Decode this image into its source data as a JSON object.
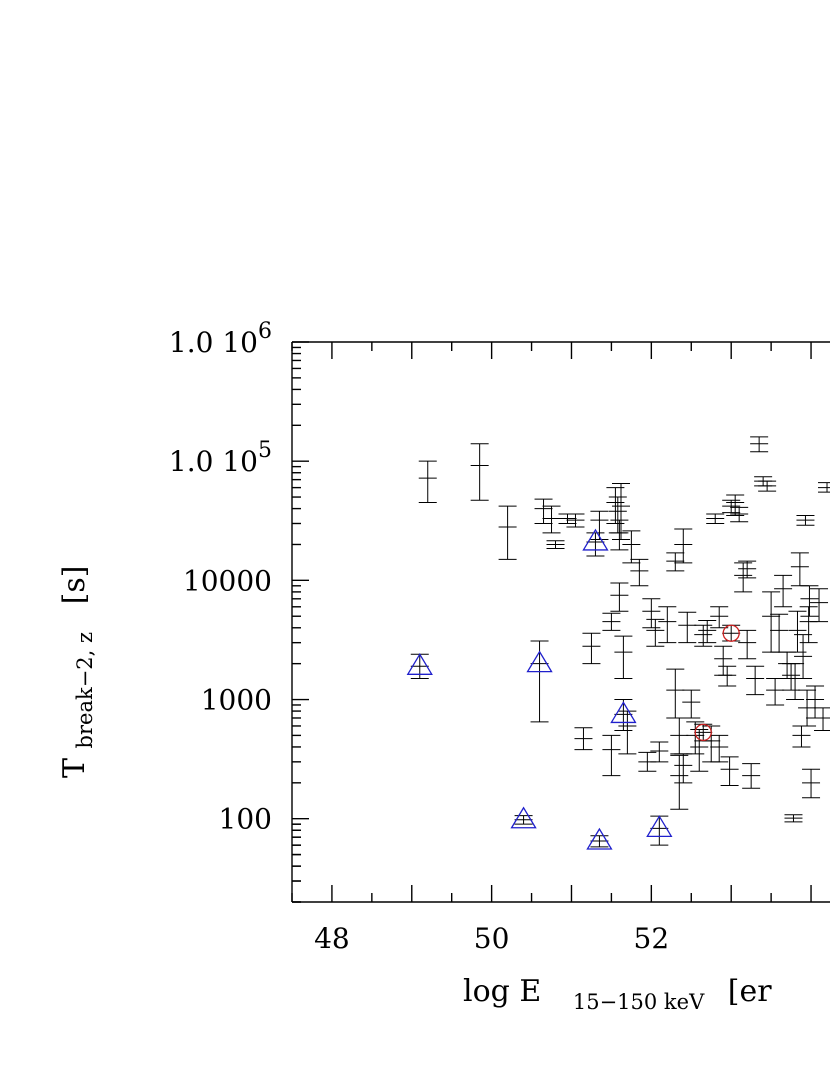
{
  "chart_data": {
    "type": "scatter",
    "xlabel": {
      "main": "log E",
      "sub": "15−150 keV",
      "unit": "[er"
    },
    "ylabel": {
      "main": "T",
      "sub": "break−2, z",
      "unit": "[s]"
    },
    "x_scale": "linear",
    "y_scale": "log",
    "xlim": [
      47.5,
      54.3
    ],
    "ylim": [
      20,
      1000000
    ],
    "x_ticks": [
      {
        "value": 48,
        "label": "48"
      },
      {
        "value": 50,
        "label": "50"
      },
      {
        "value": 52,
        "label": "52"
      }
    ],
    "y_ticks": [
      {
        "value": 1000000,
        "prefix": "1.0",
        "label": "10",
        "exp": "6"
      },
      {
        "value": 100000,
        "prefix": "1.0",
        "label": "10",
        "exp": "5"
      },
      {
        "value": 10000,
        "prefix": "",
        "label": "10000",
        "exp": ""
      },
      {
        "value": 1000,
        "prefix": "",
        "label": "1000",
        "exp": ""
      },
      {
        "value": 100,
        "prefix": "",
        "label": "100",
        "exp": ""
      }
    ],
    "grid": false,
    "series": [
      {
        "marker": "cross",
        "color": "#000000",
        "points": [
          [
            49.2,
            72000,
            45000,
            100000
          ],
          [
            49.85,
            92000,
            47000,
            140000
          ],
          [
            50.2,
            28000,
            15000,
            42000
          ],
          [
            50.65,
            40000,
            30000,
            48000
          ],
          [
            50.75,
            33000,
            25000,
            42000
          ],
          [
            50.8,
            20000,
            18500,
            21500
          ],
          [
            50.95,
            33000,
            30000,
            36000
          ],
          [
            51.05,
            32000,
            28000,
            36000
          ],
          [
            51.15,
            470,
            380,
            580
          ],
          [
            51.25,
            2800,
            2000,
            3600
          ],
          [
            51.35,
            32000,
            22000,
            38000
          ],
          [
            51.5,
            4500,
            3800,
            5300
          ],
          [
            51.55,
            45000,
            30000,
            60000
          ],
          [
            51.58,
            38000,
            25000,
            50000
          ],
          [
            51.6,
            25000,
            18000,
            32000
          ],
          [
            51.62,
            42000,
            22000,
            65000
          ],
          [
            51.65,
            2500,
            1500,
            3400
          ],
          [
            51.6,
            7500,
            5500,
            9500
          ],
          [
            51.5,
            380,
            230,
            500
          ],
          [
            51.7,
            600,
            350,
            800
          ],
          [
            51.75,
            20000,
            14000,
            26000
          ],
          [
            51.85,
            12000,
            9000,
            15000
          ],
          [
            51.95,
            300,
            250,
            360
          ],
          [
            52.0,
            5500,
            4000,
            7000
          ],
          [
            52.05,
            3800,
            2800,
            4700
          ],
          [
            52.1,
            370,
            300,
            440
          ],
          [
            52.2,
            4500,
            3000,
            6000
          ],
          [
            52.3,
            14500,
            12000,
            17000
          ],
          [
            52.3,
            1200,
            700,
            1800
          ],
          [
            52.35,
            230,
            120,
            340
          ],
          [
            52.4,
            20000,
            14000,
            27000
          ],
          [
            52.45,
            4200,
            3000,
            5400
          ],
          [
            52.5,
            950,
            700,
            1200
          ],
          [
            52.55,
            500,
            350,
            650
          ],
          [
            52.6,
            400,
            250,
            560
          ],
          [
            52.65,
            3500,
            2800,
            4200
          ],
          [
            52.7,
            3800,
            3000,
            4600
          ],
          [
            52.75,
            450,
            300,
            600
          ],
          [
            52.8,
            33000,
            30000,
            36000
          ],
          [
            52.85,
            5000,
            4000,
            6000
          ],
          [
            52.9,
            2200,
            1600,
            2800
          ],
          [
            52.95,
            1600,
            1300,
            1900
          ],
          [
            52.98,
            260,
            190,
            330
          ],
          [
            53.0,
            42000,
            37000,
            47000
          ],
          [
            53.05,
            45000,
            35000,
            52000
          ],
          [
            53.1,
            36000,
            31000,
            41000
          ],
          [
            53.15,
            11000,
            8000,
            14000
          ],
          [
            53.2,
            12500,
            10500,
            14500
          ],
          [
            53.25,
            230,
            180,
            290
          ],
          [
            53.3,
            1500,
            1100,
            1900
          ],
          [
            53.35,
            140000,
            120000,
            160000
          ],
          [
            53.4,
            68000,
            62000,
            74000
          ],
          [
            53.45,
            62000,
            56000,
            68000
          ],
          [
            53.5,
            5000,
            2500,
            8000
          ],
          [
            53.55,
            1200,
            900,
            1500
          ],
          [
            53.6,
            3800,
            2500,
            5200
          ],
          [
            53.65,
            8500,
            6000,
            11000
          ],
          [
            53.7,
            2000,
            1500,
            2500
          ],
          [
            53.75,
            1600,
            1200,
            2000
          ],
          [
            53.78,
            101,
            94,
            108
          ],
          [
            53.8,
            1500,
            1000,
            2000
          ],
          [
            53.83,
            3800,
            2500,
            5500
          ],
          [
            53.86,
            13000,
            9000,
            17000
          ],
          [
            53.88,
            500,
            400,
            600
          ],
          [
            53.9,
            2300,
            1500,
            3500
          ],
          [
            53.93,
            32000,
            29000,
            35000
          ],
          [
            53.95,
            850,
            600,
            1200
          ],
          [
            53.97,
            4500,
            3000,
            6000
          ],
          [
            53.98,
            7000,
            5000,
            9000
          ],
          [
            54.0,
            200,
            150,
            260
          ],
          [
            54.05,
            1000,
            700,
            1300
          ],
          [
            54.1,
            6500,
            4500,
            8500
          ],
          [
            54.15,
            700,
            550,
            850
          ],
          [
            54.2,
            60000,
            55000,
            66000
          ],
          [
            52.35,
            500,
            350,
            700
          ],
          [
            52.4,
            280,
            200,
            350
          ],
          [
            52.85,
            400,
            300,
            500
          ],
          [
            53.2,
            3000,
            2200,
            3800
          ]
        ]
      },
      {
        "marker": "triangle",
        "color": "#2020cc",
        "points": [
          [
            49.1,
            1900,
            1500,
            2400
          ],
          [
            50.4,
            98,
            90,
            106
          ],
          [
            50.6,
            2000,
            650,
            3100
          ],
          [
            51.3,
            21000,
            16000,
            25000
          ],
          [
            51.35,
            65,
            58,
            72
          ],
          [
            51.65,
            750,
            550,
            1000
          ],
          [
            52.1,
            83,
            60,
            105
          ]
        ]
      },
      {
        "marker": "circle",
        "color": "#cc2020",
        "points": [
          [
            52.65,
            530,
            450,
            620
          ],
          [
            53.0,
            3600,
            3100,
            4200
          ]
        ]
      }
    ]
  }
}
